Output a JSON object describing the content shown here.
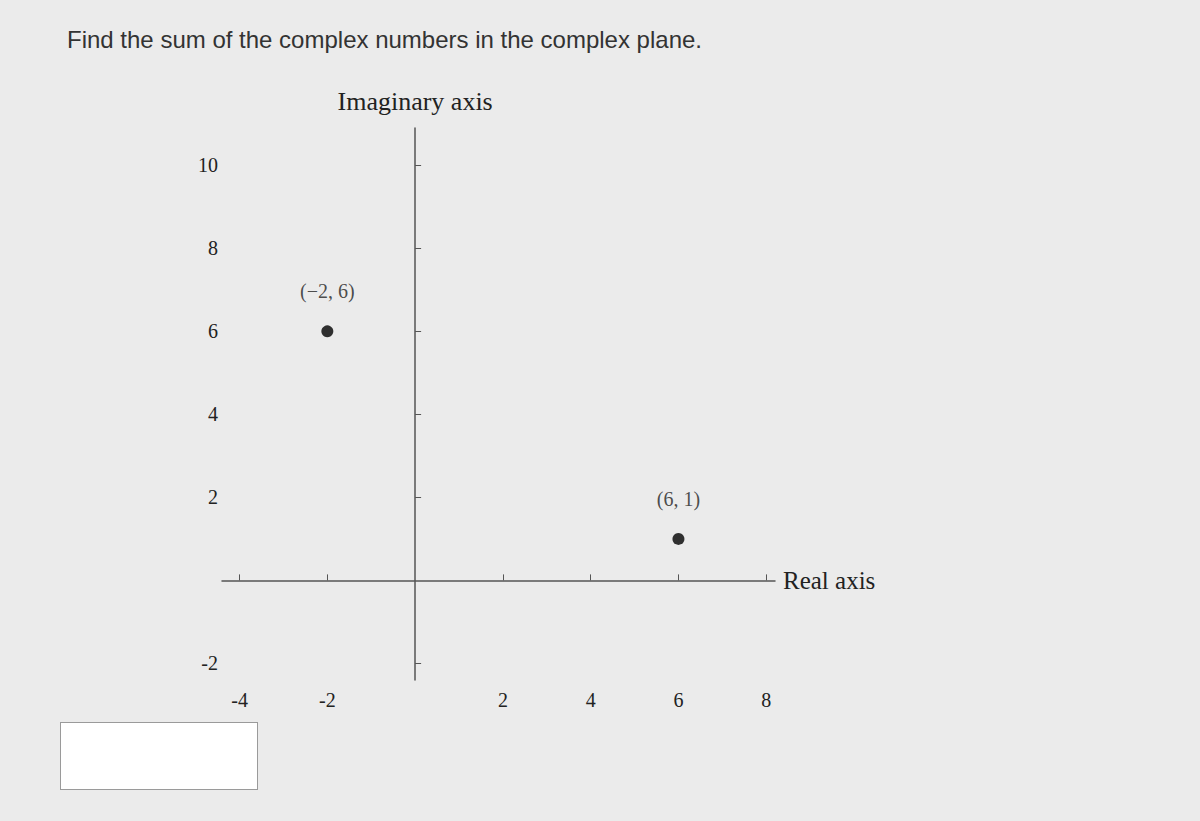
{
  "chart_data": {
    "type": "scatter",
    "title": "Find the sum of the complex numbers in the complex plane.",
    "x_label": "Real axis",
    "y_label": "Imaginary axis",
    "x": [
      -2,
      6
    ],
    "values": [
      6,
      1
    ],
    "value_labels": [
      "(−2, 6)",
      "(6, 1)"
    ],
    "data_labels": true,
    "color": "#000000",
    "marker": "circle",
    "xlim": [
      -4.4,
      8.2
    ],
    "ylim": [
      -2.4,
      10.9
    ],
    "xticks": [
      -4,
      -2,
      2,
      4,
      6,
      8
    ],
    "yticks": [
      -2,
      2,
      4,
      6,
      8,
      10
    ],
    "grid": false
  }
}
